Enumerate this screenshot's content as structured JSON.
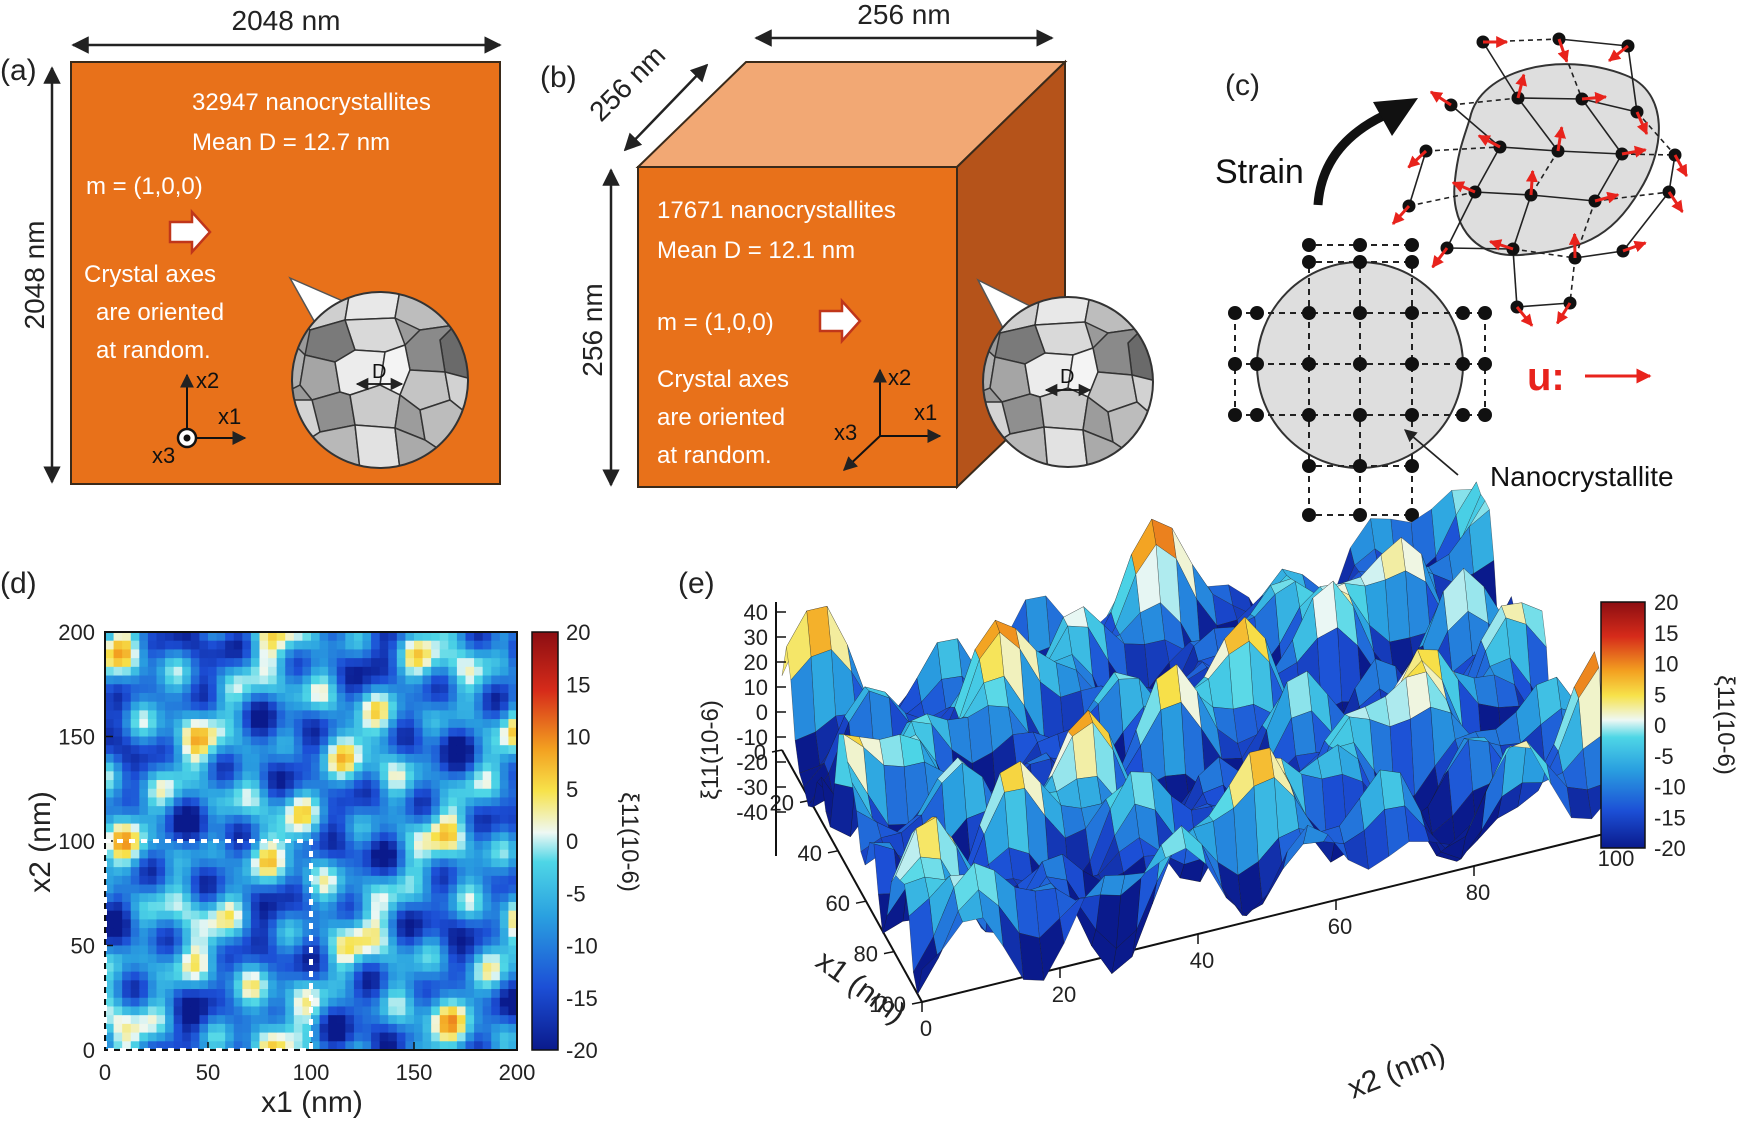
{
  "figure": {
    "panel_a": {
      "label": "(a)",
      "width_label": "2048 nm",
      "height_label": "2048 nm",
      "count_text": "32947 nanocrystallites",
      "mean_text": "Mean D = 12.7 nm",
      "m_text": "m = (1,0,0)",
      "axes_note_1": "Crystal axes",
      "axes_note_2": "are oriented",
      "axes_note_3": "at random.",
      "grain_label": "D",
      "axis_x1": "x1",
      "axis_x2": "x2",
      "axis_x3": "x3"
    },
    "panel_b": {
      "label": "(b)",
      "top_label": "256 nm",
      "depth_label": "256 nm",
      "height_label": "256 nm",
      "count_text": "17671 nanocrystallites",
      "mean_text": "Mean D = 12.1 nm",
      "m_text": "m = (1,0,0)",
      "axes_note_1": "Crystal axes",
      "axes_note_2": "are oriented",
      "axes_note_3": "at random.",
      "grain_label": "D",
      "axis_x1": "x1",
      "axis_x2": "x2",
      "axis_x3": "x3"
    },
    "panel_c": {
      "label": "(c)",
      "strain_label": "Strain",
      "u_label": "u:",
      "nano_label": "Nanocrystallite"
    },
    "colors": {
      "film": "#e8711a",
      "film_top": "#f2a874",
      "film_side": "#b5531a",
      "arrow_red": "#e8231c"
    }
  },
  "chart_data": [
    {
      "panel": "(d)",
      "type": "heatmap",
      "title": "",
      "xlabel": "x1 (nm)",
      "ylabel": "x2 (nm)",
      "xlim": [
        0,
        200
      ],
      "ylim": [
        0,
        200
      ],
      "xticks": [
        "0",
        "50",
        "100",
        "150",
        "200"
      ],
      "yticks": [
        "0",
        "50",
        "100",
        "150",
        "200"
      ],
      "colorbar_label": "ξ11(10-6)",
      "colorbar_range": [
        -20,
        20
      ],
      "colorbar_ticks": [
        "20",
        "15",
        "10",
        "5",
        "0",
        "-5",
        "-10",
        "-15",
        "-20"
      ],
      "highlight_region": {
        "x": [
          0,
          100
        ],
        "y": [
          0,
          100
        ]
      }
    },
    {
      "panel": "(e)",
      "type": "surface",
      "xlabel": "x1 (nm)",
      "ylabel": "x2 (nm)",
      "zlabel": "ξ11(10-6)",
      "x_ticks": [
        "0",
        "20",
        "40",
        "60",
        "80",
        "100"
      ],
      "y_ticks": [
        "0",
        "20",
        "40",
        "60",
        "80",
        "100"
      ],
      "z_ticks": [
        "40",
        "30",
        "20",
        "10",
        "0",
        "-10",
        "-20",
        "-30",
        "-40"
      ],
      "colorbar_range": [
        -20,
        20
      ],
      "colorbar_ticks": [
        "20",
        "15",
        "10",
        "5",
        "0",
        "-5",
        "-10",
        "-15",
        "-20"
      ]
    }
  ]
}
